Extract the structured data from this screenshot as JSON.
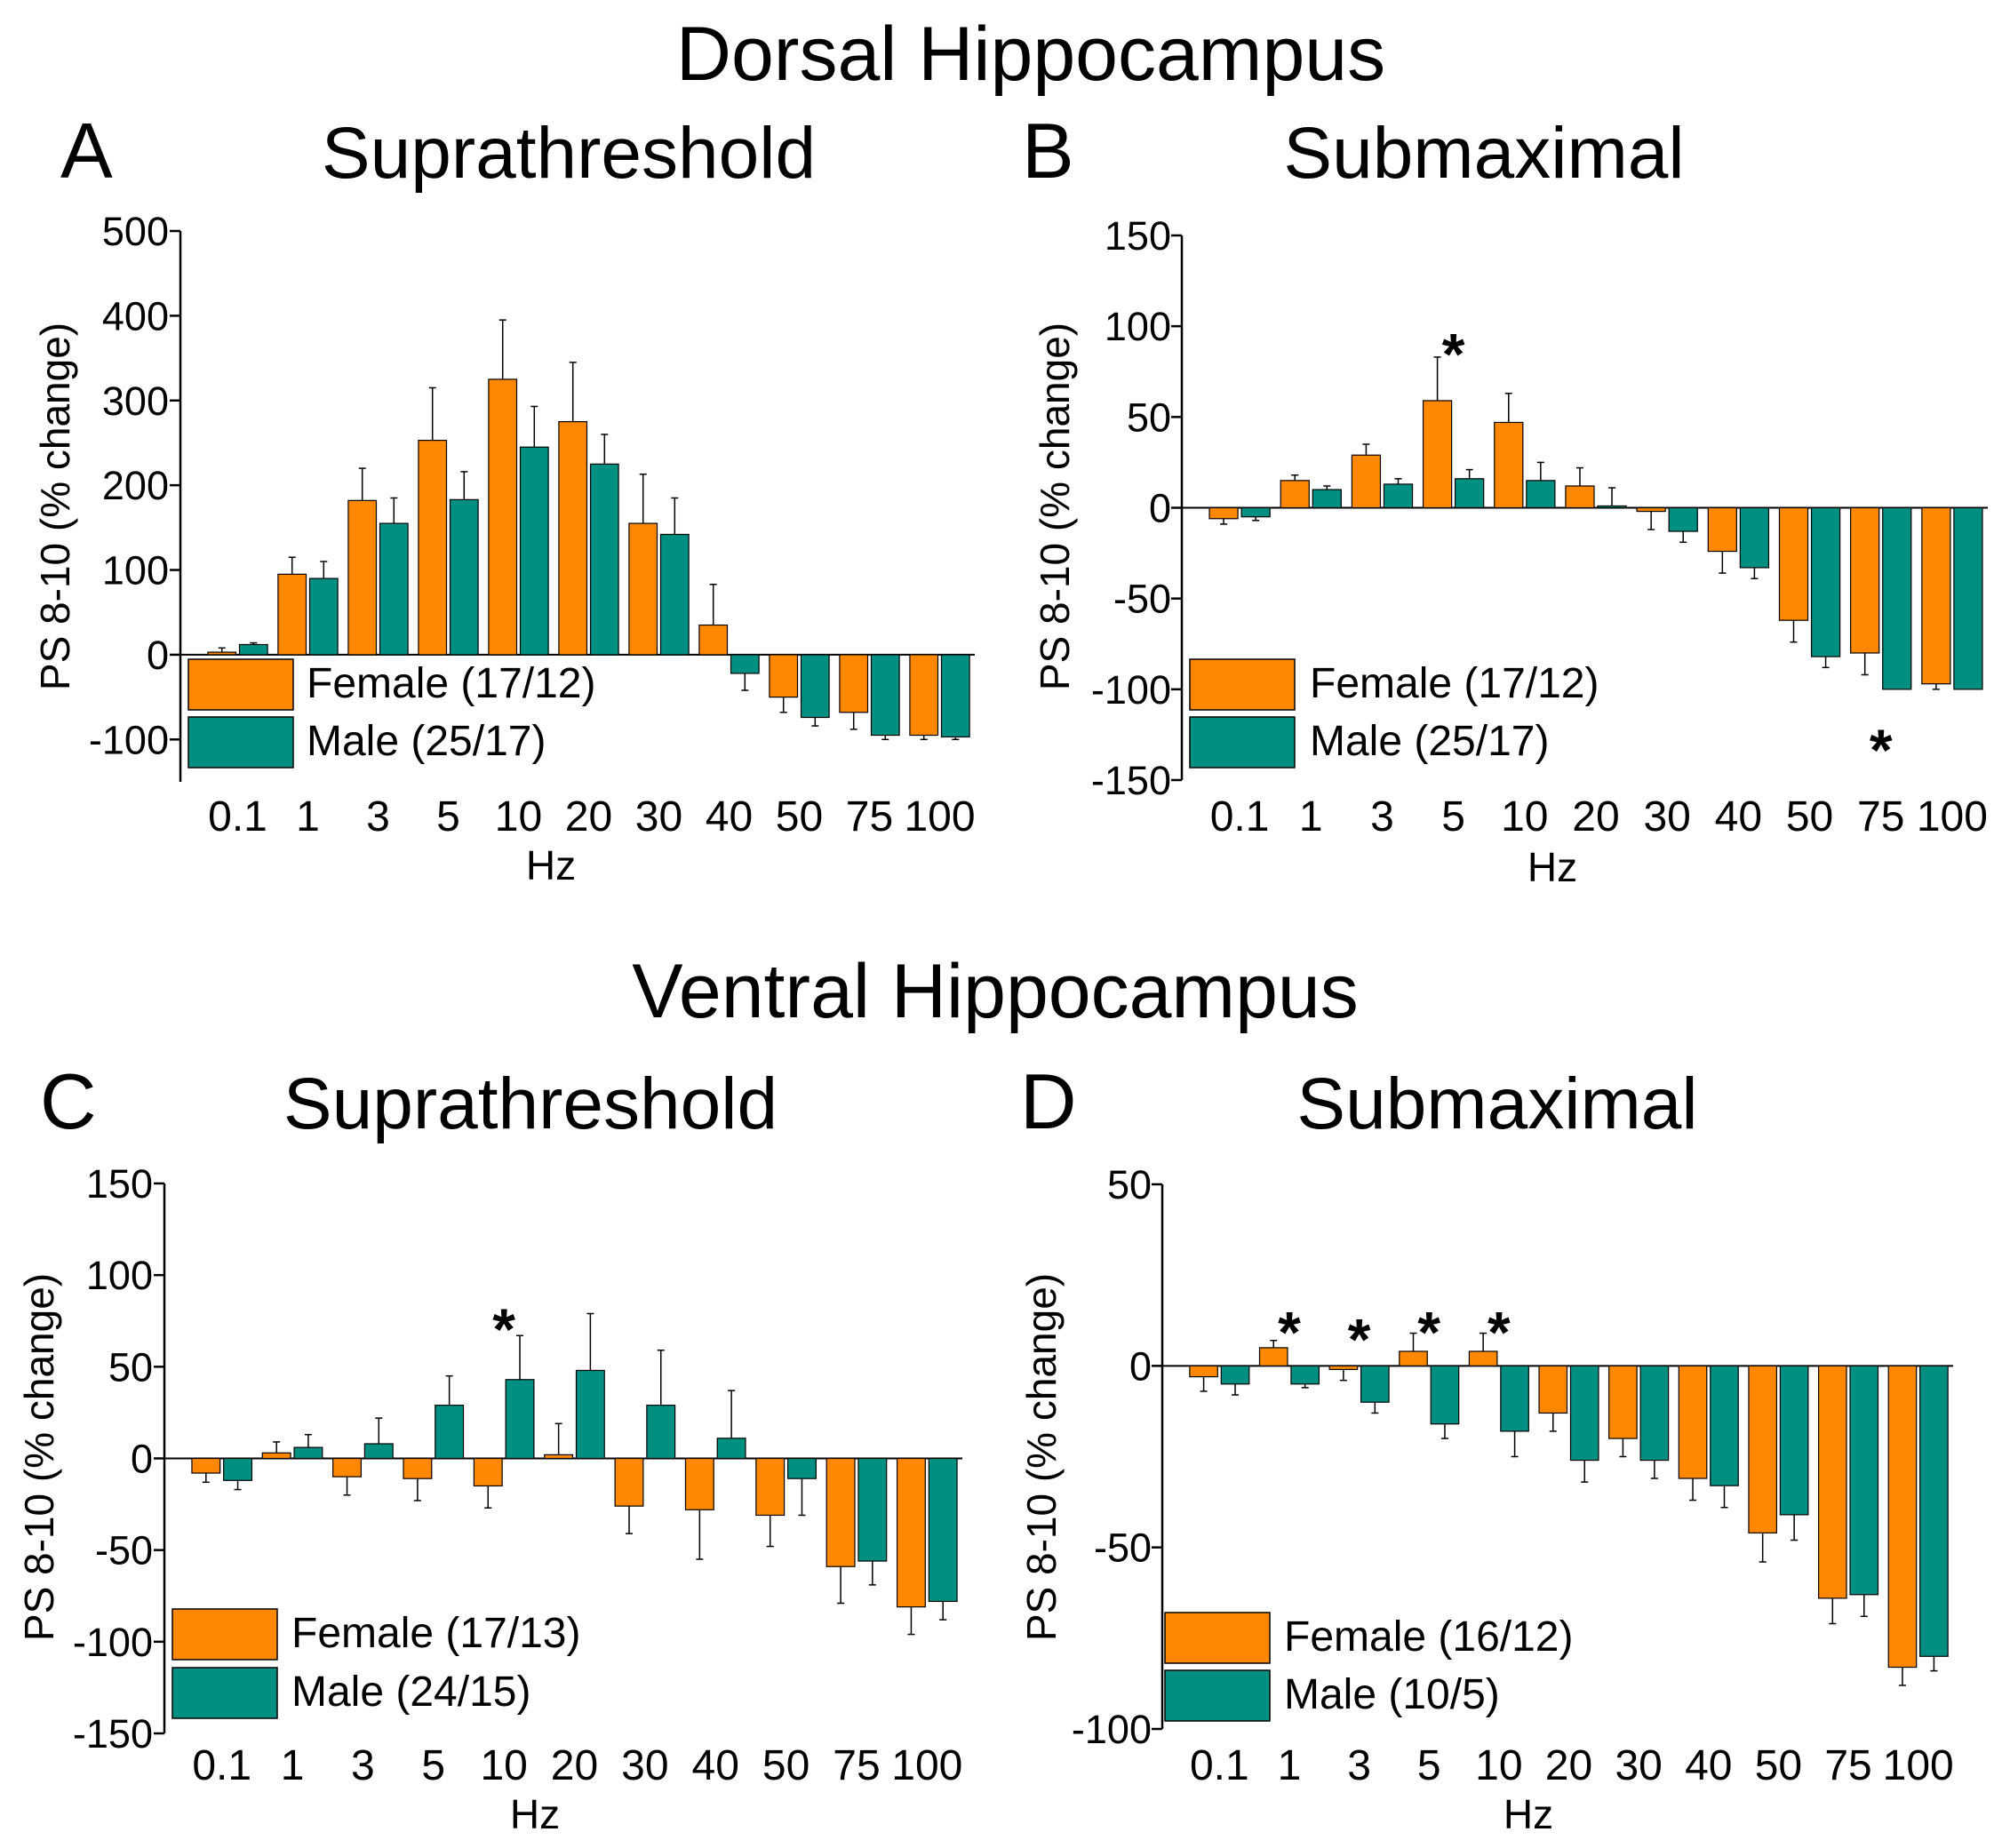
{
  "section_titles": [
    "Dorsal Hippocampus",
    "Ventral Hippocampus"
  ],
  "colors": {
    "female": "#FF8800",
    "male": "#008F80",
    "axis": "#000000"
  },
  "chart_data": [
    {
      "type": "bar",
      "letter": "A",
      "title": "Suprathreshold",
      "region": "Dorsal Hippocampus",
      "xlabel": "Hz",
      "ylabel": "PS 8-10 (% change)",
      "ylim": [
        -150,
        500
      ],
      "yticks": [
        500,
        400,
        300,
        200,
        100,
        0,
        -100
      ],
      "categories": [
        "0.1",
        "1",
        "3",
        "5",
        "10",
        "20",
        "30",
        "40",
        "50",
        "75",
        "100"
      ],
      "legend_position": "bottom-left",
      "series": [
        {
          "name": "Female (17/12)",
          "color_key": "female",
          "values": [
            3,
            95,
            182,
            253,
            325,
            275,
            155,
            35,
            -50,
            -68,
            -95
          ],
          "errors": [
            5,
            20,
            38,
            62,
            70,
            70,
            58,
            48,
            18,
            20,
            5
          ]
        },
        {
          "name": "Male (25/17)",
          "color_key": "male",
          "values": [
            12,
            90,
            155,
            183,
            245,
            225,
            142,
            -22,
            -74,
            -95,
            -97
          ],
          "errors": [
            2,
            20,
            30,
            33,
            48,
            35,
            43,
            20,
            10,
            5,
            3
          ]
        }
      ],
      "annotations": []
    },
    {
      "type": "bar",
      "letter": "B",
      "title": "Submaximal",
      "region": "Dorsal Hippocampus",
      "xlabel": "Hz",
      "ylabel": "PS 8-10 (% change)",
      "ylim": [
        -150,
        150
      ],
      "yticks": [
        150,
        100,
        50,
        0,
        -50,
        -100,
        -150
      ],
      "categories": [
        "0.1",
        "1",
        "3",
        "5",
        "10",
        "20",
        "30",
        "40",
        "50",
        "75",
        "100"
      ],
      "legend_position": "bottom-left",
      "series": [
        {
          "name": "Female (17/12)",
          "color_key": "female",
          "values": [
            -6,
            15,
            29,
            59,
            47,
            12,
            -2,
            -24,
            -62,
            -80,
            -97
          ],
          "errors": [
            3,
            3,
            6,
            24,
            16,
            10,
            10,
            12,
            12,
            12,
            3
          ]
        },
        {
          "name": "Male (25/17)",
          "color_key": "male",
          "values": [
            -5,
            10,
            13,
            16,
            15,
            1,
            -13,
            -33,
            -82,
            -100,
            -100
          ],
          "errors": [
            2,
            2,
            3,
            5,
            10,
            10,
            6,
            6,
            6,
            0,
            0
          ]
        }
      ],
      "annotations": [
        {
          "text": "*",
          "category_index": 3,
          "y": 88
        },
        {
          "text": "*",
          "category_index": 9,
          "y": -130
        }
      ]
    },
    {
      "type": "bar",
      "letter": "C",
      "title": "Suprathreshold",
      "region": "Ventral Hippocampus",
      "xlabel": "Hz",
      "ylabel": "PS 8-10 (% change)",
      "ylim": [
        -150,
        150
      ],
      "yticks": [
        150,
        100,
        50,
        0,
        -50,
        -100,
        -150
      ],
      "categories": [
        "0.1",
        "1",
        "3",
        "5",
        "10",
        "20",
        "30",
        "40",
        "50",
        "75",
        "100"
      ],
      "legend_position": "bottom-left",
      "series": [
        {
          "name": "Female (17/13)",
          "color_key": "female",
          "values": [
            -8,
            3,
            -10,
            -11,
            -15,
            2,
            -26,
            -28,
            -31,
            -59,
            -81
          ],
          "errors": [
            5,
            6,
            10,
            12,
            12,
            17,
            15,
            27,
            17,
            20,
            15
          ]
        },
        {
          "name": "Male (24/15)",
          "color_key": "male",
          "values": [
            -12,
            6,
            8,
            29,
            43,
            48,
            29,
            11,
            -11,
            -56,
            -78
          ],
          "errors": [
            5,
            7,
            14,
            16,
            24,
            31,
            30,
            26,
            20,
            13,
            10
          ]
        }
      ],
      "annotations": [
        {
          "text": "*",
          "category_index": 4,
          "y": 74
        }
      ]
    },
    {
      "type": "bar",
      "letter": "D",
      "title": "Submaximal",
      "region": "Ventral Hippocampus",
      "xlabel": "Hz",
      "ylabel": "PS 8-10 (% change)",
      "ylim": [
        -100,
        50
      ],
      "yticks": [
        50,
        0,
        -50,
        -100
      ],
      "categories": [
        "0.1",
        "1",
        "3",
        "5",
        "10",
        "20",
        "30",
        "40",
        "50",
        "75",
        "100"
      ],
      "legend_position": "bottom-left",
      "series": [
        {
          "name": "Female (16/12)",
          "color_key": "female",
          "values": [
            -3,
            5,
            -1,
            4,
            4,
            -13,
            -20,
            -31,
            -46,
            -64,
            -83
          ],
          "errors": [
            4,
            2,
            3,
            5,
            5,
            5,
            5,
            6,
            8,
            7,
            5
          ]
        },
        {
          "name": "Male (10/5)",
          "color_key": "male",
          "values": [
            -5,
            -5,
            -10,
            -16,
            -18,
            -26,
            -26,
            -33,
            -41,
            -63,
            -80
          ],
          "errors": [
            3,
            1,
            3,
            4,
            7,
            6,
            5,
            6,
            7,
            6,
            4
          ]
        }
      ],
      "annotations": [
        {
          "text": "*",
          "category_index": 1,
          "y": 11
        },
        {
          "text": "*",
          "category_index": 2,
          "y": 9
        },
        {
          "text": "*",
          "category_index": 3,
          "y": 11
        },
        {
          "text": "*",
          "category_index": 4,
          "y": 11
        }
      ]
    }
  ]
}
